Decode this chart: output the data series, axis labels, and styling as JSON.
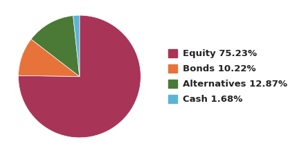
{
  "labels": [
    "Equity 75.23%",
    "Bonds 10.22%",
    "Alternatives 12.87%",
    "Cash 1.68%"
  ],
  "values": [
    75.23,
    10.22,
    12.87,
    1.68
  ],
  "colors": [
    "#a83458",
    "#e8733a",
    "#4a7a35",
    "#5ab4d6"
  ],
  "background_color": "#ffffff",
  "legend_fontsize": 9.5,
  "startangle": 90,
  "counterclock": false
}
